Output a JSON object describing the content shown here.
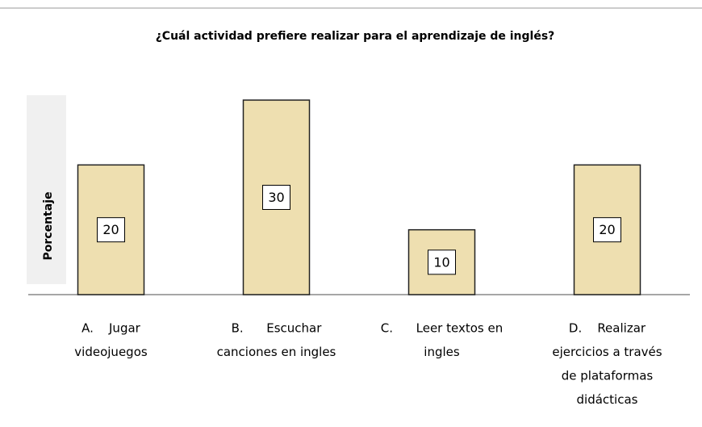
{
  "chart_data": {
    "type": "bar",
    "title": "¿Cuál actividad prefiere realizar para el aprendizaje de inglés?",
    "y_label": "Porcentaje",
    "categories": [
      [
        "A.    Jugar",
        "videojuegos"
      ],
      [
        "B.      Escuchar",
        "canciones en ingles"
      ],
      [
        "C.      Leer textos en",
        "ingles"
      ],
      [
        "D.    Realizar",
        "ejercicios a través",
        "de plataformas",
        "didácticas"
      ]
    ],
    "values": [
      20,
      30,
      10,
      20
    ],
    "color": "#eedfb0",
    "ylim": [
      0,
      30
    ]
  }
}
